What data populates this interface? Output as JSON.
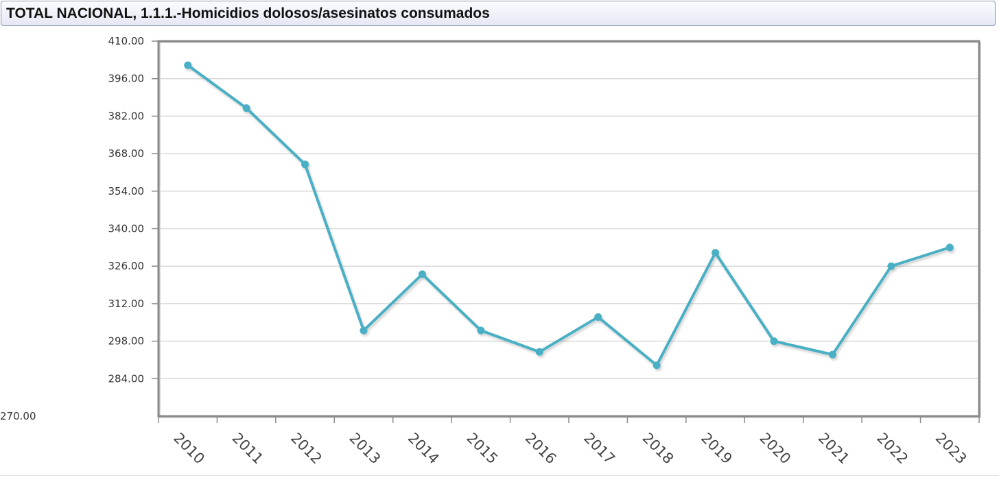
{
  "header": {
    "title": "TOTAL NACIONAL, 1.1.1.-Homicidios dolosos/asesinatos consumados"
  },
  "chart_data": {
    "type": "line",
    "title": "TOTAL NACIONAL, 1.1.1.-Homicidios dolosos/asesinatos consumados",
    "xlabel": "",
    "ylabel": "",
    "categories": [
      "2010",
      "2011",
      "2012",
      "2013",
      "2014",
      "2015",
      "2016",
      "2017",
      "2018",
      "2019",
      "2020",
      "2021",
      "2022",
      "2023"
    ],
    "series": [
      {
        "values": [
          401,
          385,
          364,
          302,
          323,
          302,
          294,
          307,
          289,
          331,
          298,
          293,
          326,
          333
        ]
      }
    ],
    "yticks": [
      "410.00",
      "396.00",
      "382.00",
      "368.00",
      "354.00",
      "340.00",
      "326.00",
      "312.00",
      "298.00",
      "284.00",
      "270.00"
    ],
    "ylim": [
      270,
      410
    ],
    "grid": true,
    "legend": "none",
    "line_color": "#4aafc4",
    "grid_color": "#d9d9d9",
    "frame_color": "#8a8a8a"
  }
}
